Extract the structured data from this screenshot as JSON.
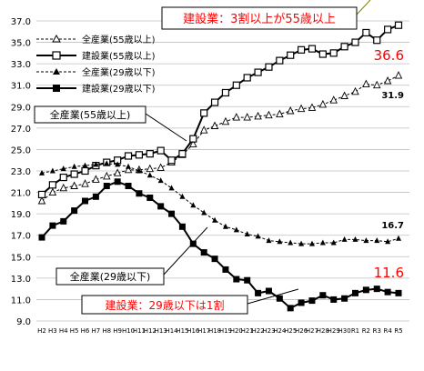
{
  "chart_data": {
    "type": "line",
    "title": "",
    "xlabel": "",
    "ylabel": "",
    "ylim": [
      9.0,
      37.0
    ],
    "yticks": [
      "37.0",
      "35.0",
      "33.0",
      "31.0",
      "29.0",
      "27.0",
      "25.0",
      "23.0",
      "21.0",
      "19.0",
      "17.0",
      "15.0",
      "13.0",
      "11.0",
      "9.0"
    ],
    "grid": "horizontal",
    "legend_position": "top-left",
    "categories": [
      "H2",
      "H3",
      "H4",
      "H5",
      "H6",
      "H7",
      "H8",
      "H9",
      "H10",
      "H11",
      "H12",
      "H13",
      "H14",
      "H15",
      "H16",
      "H17",
      "H18",
      "H19",
      "H20",
      "H21",
      "H22",
      "H23",
      "H24",
      "H25",
      "H26",
      "H27",
      "H28",
      "H29",
      "H30",
      "R1",
      "R2",
      "R3",
      "R4",
      "R5"
    ],
    "series": [
      {
        "name": "全産業(55歳以上)",
        "style": "dashed",
        "marker": "open-triangle",
        "values": [
          20.2,
          21.0,
          21.4,
          21.6,
          21.8,
          22.2,
          22.5,
          22.8,
          23.1,
          23.1,
          23.2,
          23.3,
          23.8,
          24.5,
          25.5,
          26.8,
          27.2,
          27.6,
          28.0,
          28.0,
          28.1,
          28.2,
          28.3,
          28.6,
          28.8,
          28.9,
          29.2,
          29.6,
          30.0,
          30.4,
          31.1,
          31.0,
          31.4,
          31.9
        ]
      },
      {
        "name": "建設業(55歳以上)",
        "style": "solid",
        "marker": "open-square",
        "values": [
          20.8,
          21.7,
          22.4,
          22.7,
          23.0,
          23.5,
          23.8,
          24.0,
          24.4,
          24.5,
          24.6,
          24.9,
          24.0,
          24.6,
          26.0,
          28.4,
          29.4,
          30.3,
          31.0,
          31.7,
          32.2,
          32.7,
          33.3,
          33.8,
          34.3,
          34.4,
          33.9,
          34.0,
          34.6,
          35.0,
          35.9,
          35.2,
          36.2,
          36.6
        ]
      },
      {
        "name": "全産業(29歳以下)",
        "style": "dashed",
        "marker": "filled-triangle",
        "values": [
          22.8,
          23.0,
          23.2,
          23.4,
          23.5,
          23.6,
          23.7,
          23.6,
          23.4,
          23.0,
          22.6,
          22.1,
          21.4,
          20.6,
          19.8,
          19.1,
          18.4,
          17.8,
          17.5,
          17.1,
          16.9,
          16.5,
          16.4,
          16.3,
          16.2,
          16.2,
          16.3,
          16.3,
          16.6,
          16.6,
          16.5,
          16.5,
          16.4,
          16.7
        ]
      },
      {
        "name": "建設業(29歳以下)",
        "style": "solid",
        "marker": "filled-square",
        "values": [
          16.8,
          17.9,
          18.3,
          19.3,
          20.2,
          20.6,
          21.6,
          22.0,
          21.6,
          20.9,
          20.5,
          19.7,
          19.0,
          17.8,
          16.2,
          15.4,
          14.8,
          13.8,
          12.9,
          12.8,
          11.6,
          11.8,
          11.1,
          10.2,
          10.7,
          10.9,
          11.4,
          11.0,
          11.1,
          11.6,
          11.9,
          12.0,
          11.7,
          11.6
        ]
      }
    ],
    "data_labels": {
      "s0_last": "31.9",
      "s1_last": "36.6",
      "s2_last": "16.7",
      "s3_last": "11.6"
    },
    "annotations": {
      "top_box": "建設業：3割以上が55歳以上",
      "bottom_box": "建設業：29歳以下は1割",
      "callout_55": "全産業(55歳以上)",
      "callout_29": "全産業(29歳以下)"
    },
    "colors": {
      "red": "#ff0000",
      "black": "#000000",
      "grid": "#bfbfbf"
    }
  }
}
